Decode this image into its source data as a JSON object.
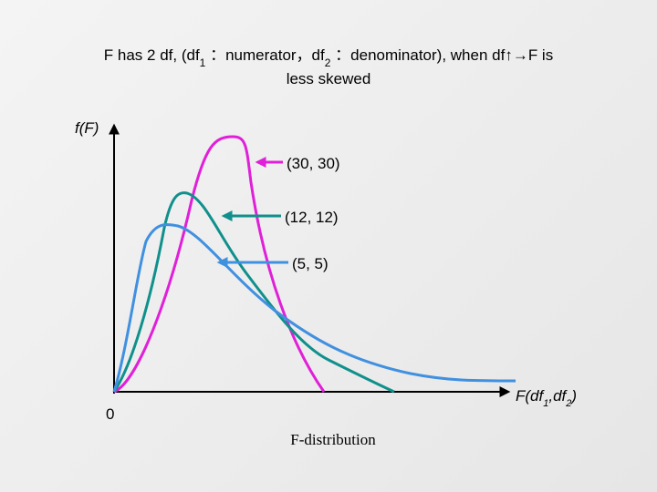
{
  "title": {
    "line1": [
      "F has 2 df, (df",
      "1",
      " ：numerator，df",
      "2",
      " ：denominator), when df↑→F is"
    ],
    "line2": "less skewed"
  },
  "y_axis_label": "f(F)",
  "x_axis_label": [
    "F(df",
    "1",
    ",df",
    "2",
    ")"
  ],
  "origin_label": "0",
  "curves": [
    {
      "label": "(30, 30)",
      "color": "#e020d8"
    },
    {
      "label": "(12, 12)",
      "color": "#10908c"
    },
    {
      "label": "(5, 5)",
      "color": "#4090e0"
    }
  ],
  "caption": "F-distribution"
}
